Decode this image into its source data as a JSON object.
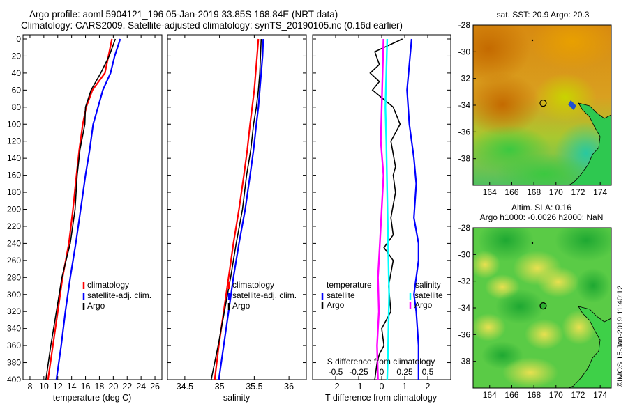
{
  "header": {
    "title_line1": "Argo profile: aoml 5904121_196 05-Jan-2019 33.85S 168.84E (NRT data)",
    "title_line2": "Climatology: CARS2009. Satellite-adjusted climatology: synTS_20190105.nc (0.16d earlier)"
  },
  "colors": {
    "argo": "#000000",
    "clim": "#ff0000",
    "satclim": "#0000ff",
    "sal_diff": "#ff00ff",
    "sal_sat": "#00ffff"
  },
  "footer": {
    "stamp": "©IMOS 15-Jan-2019 11:40:12"
  },
  "chart_data": [
    {
      "id": "temperature",
      "type": "line",
      "xlabel": "temperature (deg C)",
      "ylabel": "",
      "xlim": [
        7,
        27
      ],
      "ylim": [
        400,
        0
      ],
      "xticks": [
        8,
        10,
        12,
        14,
        16,
        18,
        20,
        22,
        24,
        26
      ],
      "yticks": [
        0,
        20,
        40,
        60,
        80,
        100,
        120,
        140,
        160,
        180,
        200,
        220,
        240,
        260,
        280,
        300,
        320,
        340,
        360,
        380,
        400
      ],
      "legend": [
        "climatology",
        "satellite-adj. clim.",
        "Argo"
      ],
      "series": [
        {
          "name": "climatology",
          "color": "#ff0000",
          "x": [
            19.8,
            19.3,
            18.8,
            17.0,
            16.1,
            15.6,
            15.1,
            14.7,
            14.2,
            13.6,
            12.7,
            12.0,
            11.3,
            10.6
          ],
          "y": [
            0,
            20,
            40,
            60,
            80,
            100,
            130,
            160,
            200,
            240,
            280,
            320,
            360,
            400
          ]
        },
        {
          "name": "satellite-adj. clim.",
          "color": "#0000ff",
          "x": [
            21.0,
            20.2,
            19.6,
            18.5,
            17.8,
            17.1,
            16.6,
            16.0,
            15.3,
            14.6,
            13.8,
            13.1,
            12.5,
            11.8
          ],
          "y": [
            0,
            20,
            40,
            60,
            80,
            100,
            130,
            160,
            200,
            240,
            280,
            320,
            360,
            400
          ]
        },
        {
          "name": "Argo",
          "color": "#000000",
          "x": [
            20.3,
            19.4,
            18.2,
            16.8,
            16.0,
            15.9,
            15.2,
            14.8,
            14.5,
            13.8,
            12.6,
            11.8,
            11.0,
            10.3
          ],
          "y": [
            0,
            20,
            40,
            60,
            80,
            100,
            130,
            160,
            200,
            240,
            280,
            320,
            360,
            400
          ]
        }
      ]
    },
    {
      "id": "salinity",
      "type": "line",
      "xlabel": "salinity",
      "ylabel": "",
      "xlim": [
        34.25,
        36.25
      ],
      "ylim": [
        400,
        0
      ],
      "xticks": [
        34.5,
        35,
        35.5,
        36
      ],
      "xticklabels": [
        "34.5",
        "35",
        "35.5",
        "36"
      ],
      "legend": [
        "climatology",
        "satellite-adj. clim.",
        "Argo"
      ],
      "series": [
        {
          "name": "climatology",
          "color": "#ff0000",
          "x": [
            35.56,
            35.54,
            35.52,
            35.5,
            35.47,
            35.44,
            35.4,
            35.35,
            35.28,
            35.2,
            35.13,
            35.06,
            34.99,
            34.93
          ],
          "y": [
            0,
            20,
            40,
            60,
            80,
            100,
            130,
            160,
            200,
            240,
            280,
            320,
            360,
            400
          ]
        },
        {
          "name": "satellite-adj. clim.",
          "color": "#0000ff",
          "x": [
            35.63,
            35.62,
            35.6,
            35.58,
            35.56,
            35.53,
            35.49,
            35.44,
            35.37,
            35.28,
            35.2,
            35.13,
            35.06,
            34.99
          ],
          "y": [
            0,
            20,
            40,
            60,
            80,
            100,
            130,
            160,
            200,
            240,
            280,
            320,
            360,
            400
          ]
        },
        {
          "name": "Argo",
          "color": "#000000",
          "x": [
            35.6,
            35.59,
            35.58,
            35.56,
            35.53,
            35.49,
            35.45,
            35.39,
            35.33,
            35.24,
            35.16,
            35.07,
            34.98,
            34.88
          ],
          "y": [
            0,
            20,
            40,
            60,
            80,
            100,
            130,
            160,
            200,
            240,
            280,
            320,
            360,
            400
          ]
        }
      ]
    },
    {
      "id": "difference",
      "type": "line",
      "xlabel": "T difference from climatology",
      "top_axis_label": "S difference from climatology",
      "xlim": [
        -3,
        3
      ],
      "ylim": [
        400,
        0
      ],
      "xticks": [
        -2,
        -1,
        0,
        1,
        2
      ],
      "top_xticks": [
        -0.5,
        -0.25,
        0,
        0.25,
        0.5
      ],
      "top_xticklabels": [
        "-0.5",
        "-0.25",
        "0",
        "0.25",
        "0.5"
      ],
      "legend_temperature": {
        "heading": "temperature",
        "items": [
          "satellite",
          "Argo"
        ]
      },
      "legend_salinity": {
        "heading": "salinity",
        "items": [
          "satellite",
          "Argo"
        ]
      },
      "series": [
        {
          "name": "T satellite",
          "color": "#0000ff",
          "x": [
            1.3,
            1.2,
            1.1,
            1.2,
            1.4,
            1.5,
            1.4,
            1.6,
            1.6,
            1.5,
            1.4,
            1.5,
            1.6,
            1.6
          ],
          "y": [
            0,
            30,
            60,
            100,
            140,
            170,
            210,
            240,
            260,
            280,
            300,
            320,
            360,
            400
          ]
        },
        {
          "name": "T Argo",
          "color": "#000000",
          "x": [
            0.9,
            -0.3,
            -0.1,
            -0.5,
            -0.1,
            -0.4,
            0.5,
            0.8,
            0.4,
            0.6,
            0.5,
            0.6,
            0.4,
            0.5,
            0.1,
            0.5,
            0.3,
            0.4,
            0.0,
            0.1,
            -0.1,
            -0.2,
            -0.3
          ],
          "y": [
            0,
            15,
            30,
            40,
            50,
            60,
            80,
            100,
            120,
            150,
            160,
            180,
            210,
            230,
            245,
            260,
            290,
            320,
            340,
            360,
            370,
            380,
            400
          ]
        },
        {
          "name": "S satellite",
          "color": "#00ffff",
          "x": [
            0.06,
            0.05,
            0.04,
            0.05,
            0.06,
            0.07,
            0.08,
            0.07,
            0.06
          ],
          "y": [
            0,
            40,
            80,
            120,
            180,
            240,
            300,
            360,
            400
          ]
        },
        {
          "name": "S Argo",
          "color": "#ff00ff",
          "x": [
            0.02,
            0.01,
            0.0,
            -0.01,
            0.02,
            0.0,
            -0.02,
            -0.04,
            -0.03,
            -0.05,
            -0.04
          ],
          "y": [
            0,
            40,
            80,
            120,
            160,
            200,
            240,
            280,
            320,
            360,
            400
          ]
        }
      ]
    },
    {
      "id": "sst_map",
      "type": "heatmap",
      "title": "sat. SST: 20.9 Argo: 20.3",
      "xlim": [
        162.5,
        175
      ],
      "ylim": [
        -40,
        -28
      ],
      "xticks": [
        164,
        166,
        168,
        170,
        172,
        174
      ],
      "yticks": [
        -28,
        -30,
        -32,
        -34,
        -36,
        -38
      ],
      "marker": {
        "lon": 168.84,
        "lat": -33.85
      }
    },
    {
      "id": "sla_map",
      "type": "heatmap",
      "title": "Altim. SLA: 0.16",
      "subtitle": "Argo h1000: -0.0026 h2000: NaN",
      "xlim": [
        162.5,
        175
      ],
      "ylim": [
        -40,
        -28
      ],
      "xticks": [
        164,
        166,
        168,
        170,
        172,
        174
      ],
      "yticks": [
        -28,
        -30,
        -32,
        -34,
        -36,
        -38
      ],
      "marker": {
        "lon": 168.84,
        "lat": -33.85
      }
    }
  ]
}
